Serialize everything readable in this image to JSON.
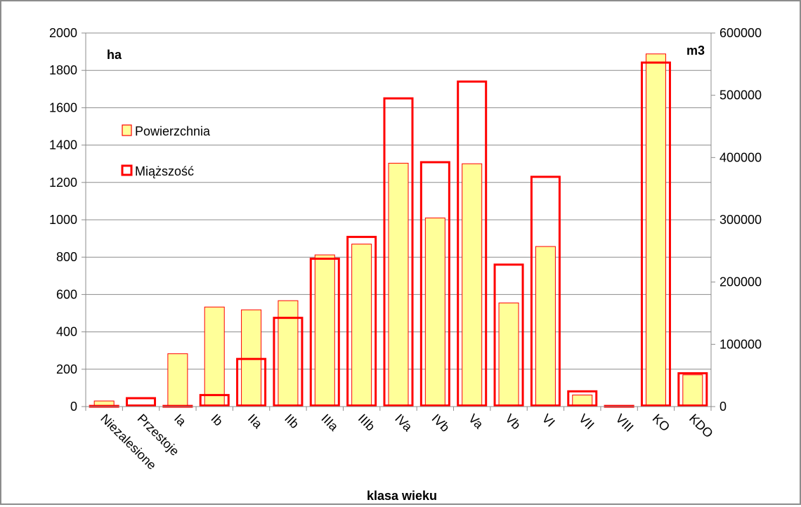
{
  "chart_data": {
    "type": "bar",
    "xlabel": "klasa wieku",
    "ylabel_left": "ha",
    "ylabel_right": "m3",
    "categories": [
      "Niezalesione",
      "Przestoje",
      "Ia",
      "Ib",
      "IIa",
      "IIb",
      "IIIa",
      "IIIb",
      "IVa",
      "IVb",
      "Va",
      "Vb",
      "VI",
      "VII",
      "VIII",
      "KO",
      "KDO"
    ],
    "series": [
      {
        "name": "Powierzchnia",
        "axis": "left",
        "color_fill": "#ffff99",
        "color_stroke": "#ff0000",
        "values": [
          30,
          0,
          283,
          533,
          518,
          567,
          812,
          870,
          1303,
          1010,
          1300,
          555,
          857,
          62,
          3,
          1888,
          170
        ]
      },
      {
        "name": "Miąższość",
        "axis": "right",
        "color_fill": "none",
        "color_stroke": "#ff0000",
        "values": [
          1000,
          13500,
          1000,
          18500,
          76500,
          142500,
          237500,
          272500,
          495000,
          392500,
          522000,
          228000,
          369000,
          24500,
          1000,
          552500,
          53500
        ]
      }
    ],
    "y_left": {
      "min": 0,
      "max": 2000,
      "ticks": [
        "0",
        "200",
        "400",
        "600",
        "800",
        "1000",
        "1200",
        "1400",
        "1600",
        "1800",
        "2000"
      ]
    },
    "y_right": {
      "min": 0,
      "max": 600000,
      "ticks": [
        "0",
        "100000",
        "200000",
        "300000",
        "400000",
        "500000",
        "600000"
      ]
    },
    "grid": true,
    "legend_position": "upper-left inside plot"
  }
}
